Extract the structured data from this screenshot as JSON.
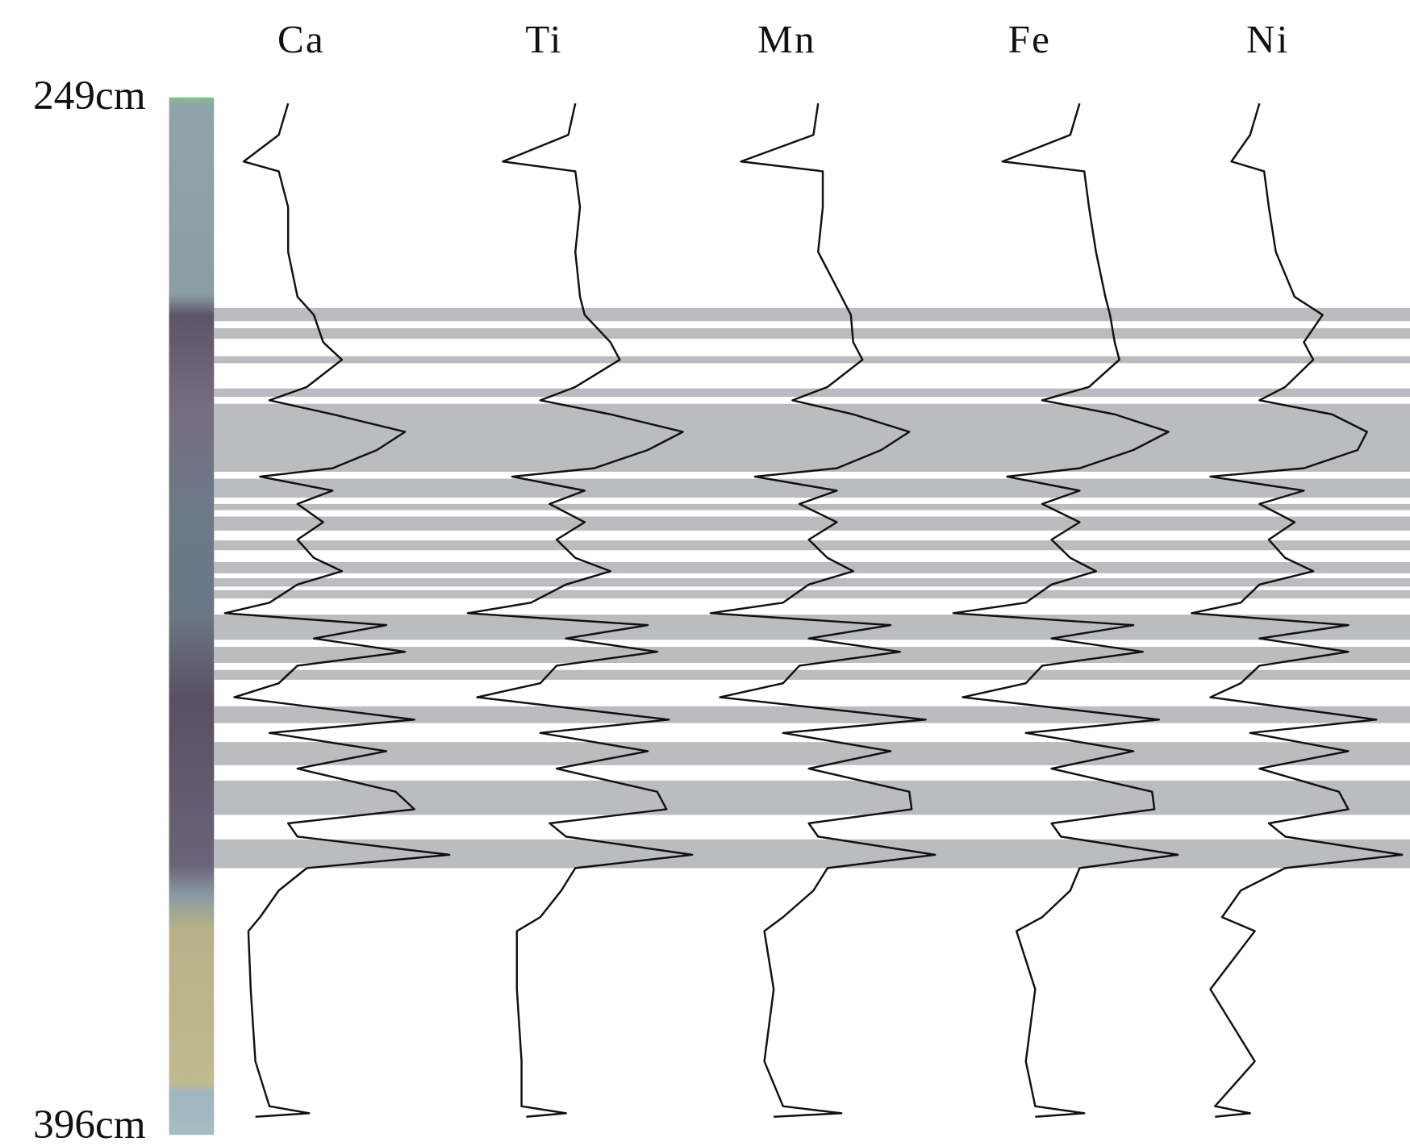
{
  "chart_data": {
    "type": "depth-profile",
    "ylim": [
      249,
      396
    ],
    "yticks": [
      {
        "value": 249,
        "label": "249cm"
      },
      {
        "value": 396,
        "label": "396cm"
      }
    ],
    "y_inverted": true,
    "xlim": [
      0,
      100
    ],
    "bands_color": "#bbbcbf",
    "bands": [
      [
        278.8,
        280.7
      ],
      [
        281.7,
        283.2
      ],
      [
        285.7,
        286.7
      ],
      [
        290.3,
        291.5
      ],
      [
        292.5,
        302.2
      ],
      [
        303.2,
        305.9
      ],
      [
        306.8,
        307.7
      ],
      [
        308.6,
        310.6
      ],
      [
        312.0,
        313.4
      ],
      [
        315.1,
        316.7
      ],
      [
        317.4,
        318.6
      ],
      [
        319.1,
        320.3
      ],
      [
        322.6,
        326.2
      ],
      [
        327.2,
        329.5
      ],
      [
        330.5,
        331.9
      ],
      [
        335.7,
        338.1
      ],
      [
        340.8,
        344.1
      ],
      [
        346.3,
        351.2
      ],
      [
        354.7,
        358.8
      ]
    ],
    "depth": [
      249.6,
      254.1,
      257.9,
      259.3,
      264.4,
      270.8,
      277.2,
      279.8,
      283.7,
      286.2,
      290.1,
      292.0,
      294.0,
      296.5,
      299.1,
      301.7,
      302.9,
      304.9,
      306.8,
      309.4,
      311.9,
      314.5,
      316.4,
      318.3,
      320.9,
      322.4,
      324.1,
      326.0,
      327.9,
      329.9,
      332.4,
      334.4,
      337.6,
      339.5,
      342.1,
      344.6,
      347.9,
      350.4,
      352.4,
      354.3,
      356.9,
      358.8,
      362.0,
      365.8,
      367.8,
      376.1,
      386.4,
      392.8,
      393.8,
      394.3
    ],
    "series": [
      {
        "name": "Ca",
        "color": "#111111",
        "values": [
          29,
          25,
          10,
          25,
          29,
          29,
          33,
          40,
          44,
          52,
          37,
          21,
          48,
          79,
          67,
          48,
          17,
          48,
          33,
          44,
          33,
          40,
          52,
          33,
          21,
          2,
          71,
          40,
          79,
          33,
          25,
          6,
          83,
          21,
          71,
          33,
          75,
          83,
          29,
          33,
          98,
          37,
          25,
          17,
          12,
          13,
          15,
          21,
          38,
          15
        ]
      },
      {
        "name": "Ti",
        "color": "#111111",
        "values": [
          48,
          45,
          17,
          48,
          50,
          48,
          50,
          52,
          63,
          67,
          48,
          33,
          63,
          94,
          79,
          56,
          21,
          52,
          37,
          52,
          40,
          48,
          63,
          44,
          29,
          2,
          79,
          44,
          83,
          40,
          33,
          6,
          88,
          33,
          79,
          40,
          83,
          87,
          37,
          44,
          98,
          48,
          42,
          33,
          23,
          23,
          25,
          25,
          44,
          27
        ]
      },
      {
        "name": "Mn",
        "color": "#111111",
        "values": [
          48,
          46,
          15,
          50,
          50,
          48,
          58,
          62,
          63,
          67,
          52,
          37,
          63,
          87,
          75,
          56,
          21,
          56,
          40,
          56,
          44,
          52,
          63,
          44,
          33,
          2,
          79,
          44,
          83,
          40,
          33,
          6,
          94,
          33,
          79,
          44,
          87,
          88,
          44,
          48,
          98,
          52,
          46,
          33,
          25,
          29,
          25,
          33,
          58,
          29
        ]
      },
      {
        "name": "Fe",
        "color": "#111111",
        "values": [
          56,
          52,
          23,
          58,
          60,
          63,
          67,
          69,
          71,
          73,
          60,
          40,
          71,
          94,
          79,
          56,
          25,
          56,
          40,
          56,
          44,
          52,
          63,
          44,
          33,
          2,
          79,
          44,
          83,
          40,
          33,
          6,
          90,
          33,
          79,
          44,
          87,
          88,
          44,
          48,
          98,
          56,
          52,
          40,
          29,
          37,
          33,
          37,
          58,
          37
        ]
      },
      {
        "name": "Ni",
        "color": "#111111",
        "values": [
          31,
          27,
          19,
          33,
          35,
          38,
          46,
          58,
          50,
          54,
          42,
          31,
          62,
          77,
          73,
          50,
          10,
          50,
          31,
          46,
          35,
          42,
          54,
          31,
          23,
          2,
          69,
          31,
          69,
          31,
          23,
          10,
          81,
          27,
          69,
          31,
          65,
          69,
          35,
          42,
          92,
          42,
          23,
          15,
          29,
          10,
          29,
          12,
          27,
          12
        ]
      }
    ]
  }
}
